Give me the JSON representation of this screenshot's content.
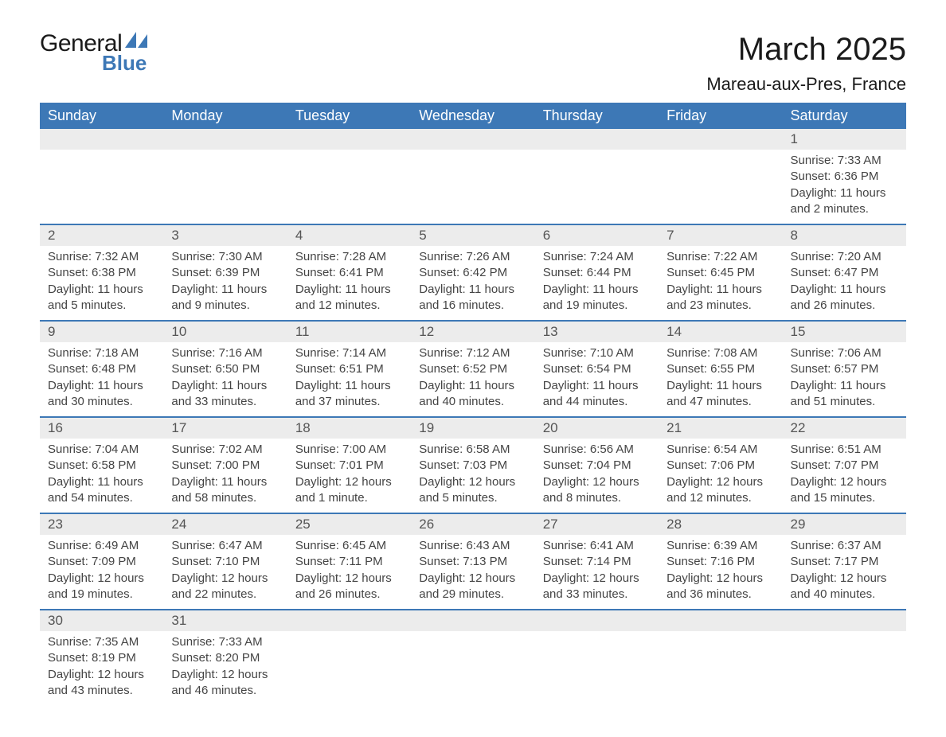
{
  "brand": {
    "word1": "General",
    "word2": "Blue",
    "triangle_color": "#3d78b6"
  },
  "title": "March 2025",
  "location": "Mareau-aux-Pres, France",
  "colors": {
    "header_bg": "#3d78b6",
    "header_text": "#ffffff",
    "daynum_bg": "#ececec",
    "row_divider": "#3d78b6",
    "body_text": "#444444"
  },
  "typography": {
    "title_fontsize": 40,
    "location_fontsize": 22,
    "dayheader_fontsize": 18,
    "daynum_fontsize": 17,
    "content_fontsize": 15
  },
  "day_headers": [
    "Sunday",
    "Monday",
    "Tuesday",
    "Wednesday",
    "Thursday",
    "Friday",
    "Saturday"
  ],
  "weeks": [
    {
      "nums": [
        "",
        "",
        "",
        "",
        "",
        "",
        "1"
      ],
      "cells": [
        "",
        "",
        "",
        "",
        "",
        "",
        "Sunrise: 7:33 AM\nSunset: 6:36 PM\nDaylight: 11 hours and 2 minutes."
      ]
    },
    {
      "nums": [
        "2",
        "3",
        "4",
        "5",
        "6",
        "7",
        "8"
      ],
      "cells": [
        "Sunrise: 7:32 AM\nSunset: 6:38 PM\nDaylight: 11 hours and 5 minutes.",
        "Sunrise: 7:30 AM\nSunset: 6:39 PM\nDaylight: 11 hours and 9 minutes.",
        "Sunrise: 7:28 AM\nSunset: 6:41 PM\nDaylight: 11 hours and 12 minutes.",
        "Sunrise: 7:26 AM\nSunset: 6:42 PM\nDaylight: 11 hours and 16 minutes.",
        "Sunrise: 7:24 AM\nSunset: 6:44 PM\nDaylight: 11 hours and 19 minutes.",
        "Sunrise: 7:22 AM\nSunset: 6:45 PM\nDaylight: 11 hours and 23 minutes.",
        "Sunrise: 7:20 AM\nSunset: 6:47 PM\nDaylight: 11 hours and 26 minutes."
      ]
    },
    {
      "nums": [
        "9",
        "10",
        "11",
        "12",
        "13",
        "14",
        "15"
      ],
      "cells": [
        "Sunrise: 7:18 AM\nSunset: 6:48 PM\nDaylight: 11 hours and 30 minutes.",
        "Sunrise: 7:16 AM\nSunset: 6:50 PM\nDaylight: 11 hours and 33 minutes.",
        "Sunrise: 7:14 AM\nSunset: 6:51 PM\nDaylight: 11 hours and 37 minutes.",
        "Sunrise: 7:12 AM\nSunset: 6:52 PM\nDaylight: 11 hours and 40 minutes.",
        "Sunrise: 7:10 AM\nSunset: 6:54 PM\nDaylight: 11 hours and 44 minutes.",
        "Sunrise: 7:08 AM\nSunset: 6:55 PM\nDaylight: 11 hours and 47 minutes.",
        "Sunrise: 7:06 AM\nSunset: 6:57 PM\nDaylight: 11 hours and 51 minutes."
      ]
    },
    {
      "nums": [
        "16",
        "17",
        "18",
        "19",
        "20",
        "21",
        "22"
      ],
      "cells": [
        "Sunrise: 7:04 AM\nSunset: 6:58 PM\nDaylight: 11 hours and 54 minutes.",
        "Sunrise: 7:02 AM\nSunset: 7:00 PM\nDaylight: 11 hours and 58 minutes.",
        "Sunrise: 7:00 AM\nSunset: 7:01 PM\nDaylight: 12 hours and 1 minute.",
        "Sunrise: 6:58 AM\nSunset: 7:03 PM\nDaylight: 12 hours and 5 minutes.",
        "Sunrise: 6:56 AM\nSunset: 7:04 PM\nDaylight: 12 hours and 8 minutes.",
        "Sunrise: 6:54 AM\nSunset: 7:06 PM\nDaylight: 12 hours and 12 minutes.",
        "Sunrise: 6:51 AM\nSunset: 7:07 PM\nDaylight: 12 hours and 15 minutes."
      ]
    },
    {
      "nums": [
        "23",
        "24",
        "25",
        "26",
        "27",
        "28",
        "29"
      ],
      "cells": [
        "Sunrise: 6:49 AM\nSunset: 7:09 PM\nDaylight: 12 hours and 19 minutes.",
        "Sunrise: 6:47 AM\nSunset: 7:10 PM\nDaylight: 12 hours and 22 minutes.",
        "Sunrise: 6:45 AM\nSunset: 7:11 PM\nDaylight: 12 hours and 26 minutes.",
        "Sunrise: 6:43 AM\nSunset: 7:13 PM\nDaylight: 12 hours and 29 minutes.",
        "Sunrise: 6:41 AM\nSunset: 7:14 PM\nDaylight: 12 hours and 33 minutes.",
        "Sunrise: 6:39 AM\nSunset: 7:16 PM\nDaylight: 12 hours and 36 minutes.",
        "Sunrise: 6:37 AM\nSunset: 7:17 PM\nDaylight: 12 hours and 40 minutes."
      ]
    },
    {
      "nums": [
        "30",
        "31",
        "",
        "",
        "",
        "",
        ""
      ],
      "cells": [
        "Sunrise: 7:35 AM\nSunset: 8:19 PM\nDaylight: 12 hours and 43 minutes.",
        "Sunrise: 7:33 AM\nSunset: 8:20 PM\nDaylight: 12 hours and 46 minutes.",
        "",
        "",
        "",
        "",
        ""
      ]
    }
  ]
}
